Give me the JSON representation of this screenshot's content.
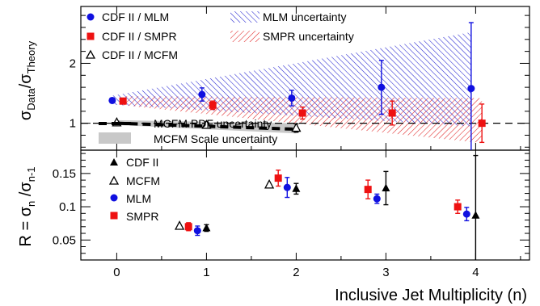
{
  "chart_data": [
    {
      "type": "scatter",
      "ylabel_main": "σ",
      "ylabel_sub1": "Data",
      "ylabel_mid": "/σ",
      "ylabel_sub2": "Theory",
      "ylim": [
        0.55,
        2.95
      ],
      "yticks": [
        1,
        2
      ],
      "xlim": [
        -0.4,
        4.6
      ],
      "reference_line": 1,
      "legend": {
        "cdf_mlm": "CDF II / MLM",
        "cdf_smpr": "CDF II / SMPR",
        "cdf_mcfm": "CDF II / MCFM",
        "mlm_unc": "MLM uncertainty",
        "smpr_unc": "SMPR uncertainty",
        "mcfm_pdf": "MCFM PDF uncertainty",
        "mcfm_scale": "MCFM Scale uncertainty"
      },
      "series": [
        {
          "name": "CDF II / MLM",
          "color": "#1010e0",
          "marker": "circle",
          "x": [
            -0.05,
            0.95,
            1.95,
            2.95,
            3.95
          ],
          "y": [
            1.38,
            1.48,
            1.42,
            1.6,
            1.58
          ],
          "err": [
            0.04,
            0.11,
            0.13,
            0.45,
            1.1
          ]
        },
        {
          "name": "CDF II / SMPR",
          "color": "#ee1111",
          "marker": "square",
          "x": [
            0.07,
            1.07,
            2.07,
            3.07,
            4.07
          ],
          "y": [
            1.37,
            1.3,
            1.17,
            1.17,
            1.0
          ],
          "err": [
            0.03,
            0.07,
            0.1,
            0.2,
            0.32
          ]
        },
        {
          "name": "CDF II / MCFM",
          "color": "#000000",
          "marker": "triangle-open",
          "x": [
            0.0,
            1.0,
            2.0
          ],
          "y": [
            1.01,
            0.97,
            0.92
          ],
          "err": [
            0.02,
            0.04,
            0.07
          ]
        }
      ],
      "bands": [
        {
          "name": "MLM uncertainty",
          "color": "#2020d0",
          "hatch": "diag-down",
          "x": [
            -0.05,
            3.95
          ],
          "upper": [
            1.46,
            2.52
          ],
          "lower": [
            1.31,
            0.95
          ]
        },
        {
          "name": "SMPR uncertainty",
          "color": "#e02020",
          "hatch": "diag-up",
          "x": [
            0.07,
            4.07
          ],
          "upper": [
            1.45,
            1.42
          ],
          "lower": [
            1.3,
            0.67
          ]
        },
        {
          "name": "MCFM Scale uncertainty",
          "color": "#c8c8c8",
          "x": [
            0.0,
            2.0
          ],
          "upper": [
            1.05,
            1.0
          ],
          "lower": [
            0.97,
            0.83
          ]
        }
      ],
      "pdf_line": {
        "x": [
          0.0,
          2.0
        ],
        "y": [
          1.0,
          0.9
        ]
      }
    },
    {
      "type": "scatter",
      "ylabel_main": "R = σ",
      "ylabel_sub1": "n",
      "ylabel_mid": " /σ",
      "ylabel_sub2": "n-1",
      "ylim": [
        0.02,
        0.185
      ],
      "yticks": [
        0.05,
        0.1,
        0.15
      ],
      "ytick_labels": [
        "0.05",
        "0.1",
        "0.15"
      ],
      "xlim": [
        -0.4,
        4.6
      ],
      "xticks": [
        0,
        1,
        2,
        3,
        4
      ],
      "xlabel": "Inclusive Jet Multiplicity (n)",
      "legend": {
        "cdf": "CDF II",
        "mcfm": "MCFM",
        "mlm": "MLM",
        "smpr": "SMPR"
      },
      "series": [
        {
          "name": "CDF II",
          "color": "#000000",
          "marker": "triangle",
          "x": [
            1.0,
            2.0,
            3.0,
            4.0
          ],
          "y": [
            0.068,
            0.127,
            0.128,
            0.087
          ],
          "err": [
            0.005,
            0.008,
            0.025,
            0.09
          ]
        },
        {
          "name": "MCFM",
          "color": "#000000",
          "marker": "triangle-open",
          "x": [
            0.7,
            1.7
          ],
          "y": [
            0.071,
            0.133
          ],
          "err": [
            0,
            0
          ]
        },
        {
          "name": "MLM",
          "color": "#1010e0",
          "marker": "circle",
          "x": [
            0.9,
            1.9,
            2.9,
            3.9
          ],
          "y": [
            0.064,
            0.129,
            0.112,
            0.089
          ],
          "err": [
            0.007,
            0.015,
            0.007,
            0.01
          ]
        },
        {
          "name": "SMPR",
          "color": "#ee1111",
          "marker": "square",
          "x": [
            0.8,
            1.8,
            2.8,
            3.8
          ],
          "y": [
            0.07,
            0.143,
            0.126,
            0.1
          ],
          "err": [
            0.006,
            0.012,
            0.014,
            0.01
          ]
        }
      ]
    }
  ]
}
